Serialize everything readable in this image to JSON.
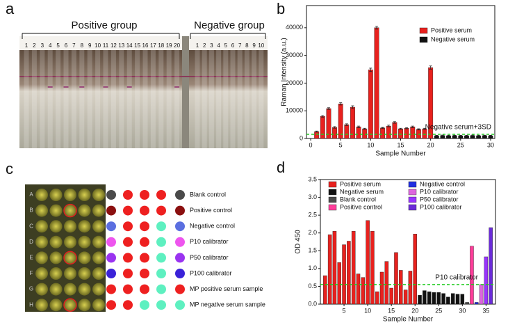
{
  "panels": {
    "a": "a",
    "b": "b",
    "c": "c",
    "d": "d"
  },
  "panel_a": {
    "groups": [
      "Positive group",
      "Negative group"
    ],
    "positive_lanes": [
      1,
      2,
      3,
      4,
      5,
      6,
      7,
      8,
      9,
      10,
      11,
      12,
      13,
      14,
      15,
      16,
      17,
      18,
      19,
      20
    ],
    "negative_lanes": [
      1,
      2,
      3,
      4,
      5,
      6,
      7,
      8,
      9,
      10
    ]
  },
  "panel_c": {
    "plate_rows": [
      "A",
      "B",
      "C",
      "D",
      "E",
      "F",
      "G",
      "H"
    ],
    "legend": [
      {
        "label": "Blank control",
        "color": "#4a4a4a"
      },
      {
        "label": "Positive control",
        "color": "#8b1010"
      },
      {
        "label": "Negative control",
        "color": "#5b6fe0"
      },
      {
        "label": "P10 calibrator",
        "color": "#ee55ee"
      },
      {
        "label": "P50 calibrator",
        "color": "#9a33f0"
      },
      {
        "label": "P100 calibrator",
        "color": "#3a22d8"
      },
      {
        "label": "MP positive serum sample",
        "color": "#ee2020"
      },
      {
        "label": "MP negative serum sample",
        "color": "#5ef0c0"
      }
    ]
  },
  "chart_data": [
    {
      "type": "bar",
      "xlabel": "Sample Number",
      "ylabel": "Raman Intensity (a.u.)",
      "xlim": [
        -0.7,
        30.7
      ],
      "ylim": [
        0,
        48000
      ],
      "xticks": [
        0,
        5,
        10,
        15,
        20,
        25,
        30
      ],
      "yticks": [
        0,
        10000,
        20000,
        30000,
        40000
      ],
      "legend": "upper right",
      "series": [
        {
          "name": "Positive serum",
          "color": "#e8211e",
          "x": [
            1,
            2,
            3,
            4,
            5,
            6,
            7,
            8,
            9,
            10,
            11,
            12,
            13,
            14,
            15,
            16,
            17,
            18,
            19,
            20
          ],
          "values": [
            2500,
            8000,
            10800,
            4000,
            12500,
            5000,
            11300,
            4200,
            3500,
            24800,
            40000,
            3800,
            4500,
            5800,
            3500,
            3700,
            4200,
            3300,
            3500,
            25600
          ],
          "errors": [
            200,
            300,
            300,
            300,
            400,
            300,
            500,
            300,
            200,
            600,
            500,
            200,
            300,
            300,
            200,
            200,
            300,
            200,
            200,
            600
          ]
        },
        {
          "name": "Negative serum",
          "color": "#111111",
          "x": [
            21,
            22,
            23,
            24,
            25,
            26,
            27,
            28,
            29,
            30
          ],
          "values": [
            1000,
            1100,
            1000,
            1050,
            1000,
            1000,
            1100,
            1000,
            1050,
            1000
          ],
          "errors": [
            150,
            150,
            150,
            150,
            150,
            150,
            150,
            150,
            150,
            150
          ]
        }
      ],
      "reference_lines": [
        {
          "value": 1500,
          "label": "Negative serum+3SD",
          "color": "#22cc22"
        }
      ]
    },
    {
      "type": "bar",
      "xlabel": "Sample Number",
      "ylabel": "OD 450",
      "xlim": [
        0,
        37
      ],
      "ylim": [
        0,
        3.5
      ],
      "xticks": [
        5,
        10,
        15,
        20,
        25,
        30,
        35
      ],
      "yticks": [
        {
          "value": 0,
          "label": "0.0"
        },
        0.5,
        {
          "value": 1,
          "label": "1.0"
        },
        1.5,
        {
          "value": 2,
          "label": "2.0"
        },
        2.5,
        {
          "value": 3,
          "label": "3.0"
        },
        3.5
      ],
      "legend": "upper center",
      "series": [
        {
          "name": "Positive serum",
          "color": "#e8211e",
          "x": [
            1,
            2,
            3,
            4,
            5,
            6,
            7,
            8,
            9,
            10,
            11,
            12,
            13,
            14,
            15,
            16,
            17,
            18,
            19,
            20
          ],
          "values": [
            0.8,
            1.95,
            2.05,
            1.17,
            1.67,
            1.77,
            2.05,
            0.85,
            0.75,
            2.35,
            2.05,
            0.35,
            0.9,
            1.2,
            0.45,
            1.45,
            0.95,
            0.4,
            0.93,
            1.97
          ]
        },
        {
          "name": "Negative serum",
          "color": "#111111",
          "x": [
            21,
            22,
            23,
            24,
            25,
            26,
            27,
            28,
            29,
            30
          ],
          "values": [
            0.25,
            0.38,
            0.35,
            0.33,
            0.33,
            0.3,
            0.2,
            0.3,
            0.28,
            0.28
          ]
        },
        {
          "name": "Blank control",
          "color": "#4a4a4a",
          "x": [
            31
          ],
          "values": [
            0.05
          ]
        },
        {
          "name": "Positive control",
          "color": "#ff3d9a",
          "x": [
            32
          ],
          "values": [
            1.63
          ]
        },
        {
          "name": "Negative control",
          "color": "#1f2ee0",
          "x": [
            33
          ],
          "values": [
            0.05
          ]
        },
        {
          "name": "P10 calibrator",
          "color": "#dd66dd",
          "x": [
            34
          ],
          "values": [
            0.55
          ]
        },
        {
          "name": "P50 calibrator",
          "color": "#9933ff",
          "x": [
            35
          ],
          "values": [
            1.33
          ]
        },
        {
          "name": "P100 calibrator",
          "color": "#6a2bd8",
          "x": [
            36
          ],
          "values": [
            2.15
          ]
        }
      ],
      "reference_lines": [
        {
          "value": 0.55,
          "label": "P10 calibrator",
          "color": "#22cc22"
        }
      ]
    }
  ]
}
